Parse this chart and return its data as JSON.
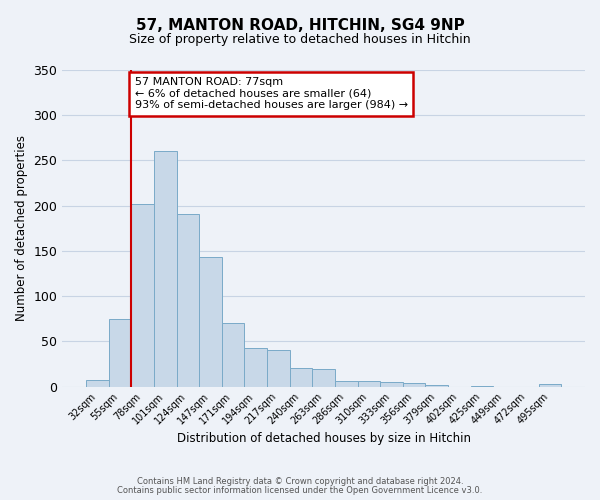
{
  "title": "57, MANTON ROAD, HITCHIN, SG4 9NP",
  "subtitle": "Size of property relative to detached houses in Hitchin",
  "xlabel": "Distribution of detached houses by size in Hitchin",
  "ylabel": "Number of detached properties",
  "bar_labels": [
    "32sqm",
    "55sqm",
    "78sqm",
    "101sqm",
    "124sqm",
    "147sqm",
    "171sqm",
    "194sqm",
    "217sqm",
    "240sqm",
    "263sqm",
    "286sqm",
    "310sqm",
    "333sqm",
    "356sqm",
    "379sqm",
    "402sqm",
    "425sqm",
    "449sqm",
    "472sqm",
    "495sqm"
  ],
  "bar_values": [
    7,
    75,
    202,
    261,
    191,
    143,
    70,
    43,
    40,
    21,
    19,
    6,
    6,
    5,
    4,
    2,
    0,
    1,
    0,
    0,
    3
  ],
  "bar_color": "#c8d8e8",
  "bar_edge_color": "#7aaac8",
  "ylim": [
    0,
    350
  ],
  "yticks": [
    0,
    50,
    100,
    150,
    200,
    250,
    300,
    350
  ],
  "property_line_idx": 2,
  "annotation_title": "57 MANTON ROAD: 77sqm",
  "annotation_line1": "← 6% of detached houses are smaller (64)",
  "annotation_line2": "93% of semi-detached houses are larger (984) →",
  "annotation_box_color": "#ffffff",
  "annotation_box_edge_color": "#cc0000",
  "vline_color": "#cc0000",
  "grid_color": "#c8d4e4",
  "bg_color": "#eef2f8",
  "footer1": "Contains HM Land Registry data © Crown copyright and database right 2024.",
  "footer2": "Contains public sector information licensed under the Open Government Licence v3.0."
}
